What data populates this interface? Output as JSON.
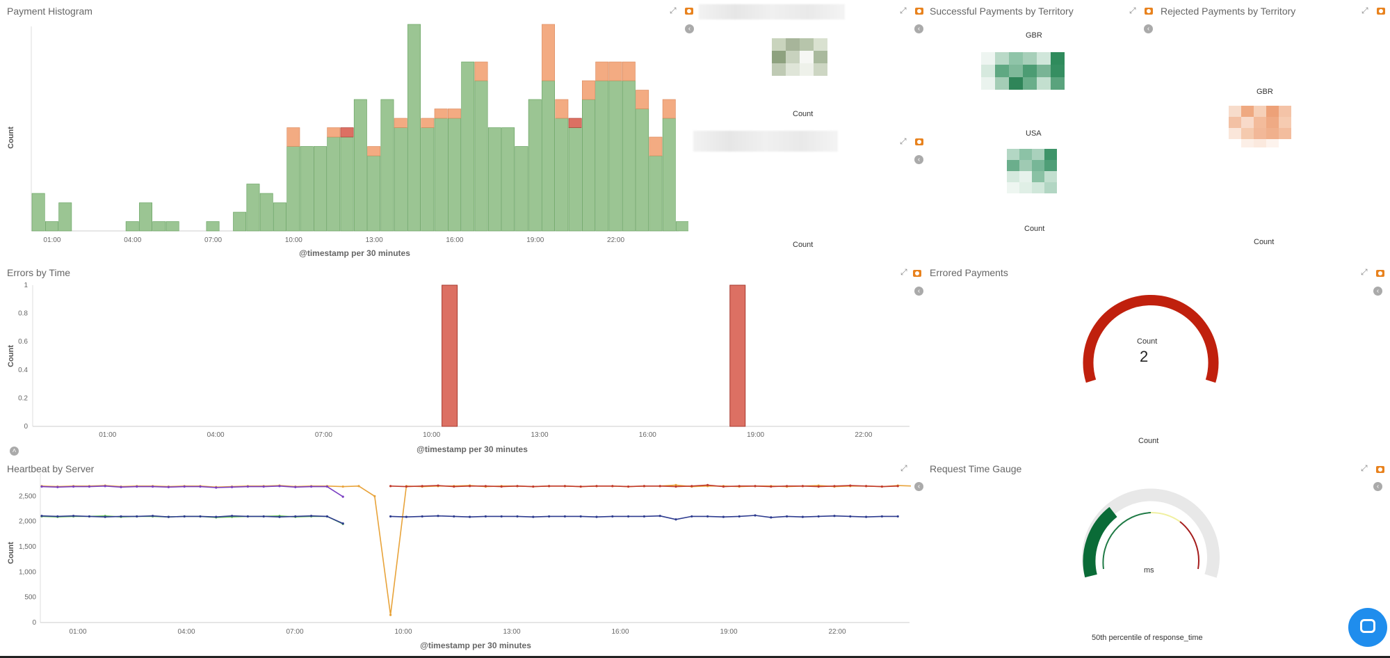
{
  "panels": {
    "payment_histogram": {
      "title": "Payment Histogram",
      "xlabel": "@timestamp per 30 minutes",
      "ylabel": "Count"
    },
    "blurred_panel": {
      "count_label_1": "Count",
      "count_label_2": "Count"
    },
    "successful": {
      "title": "Successful Payments by Territory",
      "regions": [
        "GBR",
        "USA"
      ],
      "count_label": "Count"
    },
    "rejected": {
      "title": "Rejected Payments by Territory",
      "regions": [
        "GBR"
      ],
      "count_label": "Count"
    },
    "errors": {
      "title": "Errors by Time",
      "xlabel": "@timestamp per 30 minutes",
      "ylabel": "Count"
    },
    "errored_payments": {
      "title": "Errored Payments",
      "label": "Count",
      "value": "2",
      "footer": "Count"
    },
    "heartbeat": {
      "title": "Heartbeat by Server",
      "xlabel": "@timestamp per 30 minutes",
      "ylabel": "Count"
    },
    "request_time": {
      "title": "Request Time Gauge",
      "unit": "ms",
      "footer": "50th percentile of response_time"
    }
  },
  "colors": {
    "success": "#9bc593",
    "rejected": "#f3ab82",
    "error": "#dc7063",
    "gauge_red": "#c0200d",
    "gauge_green": "#0a6b37"
  },
  "chart_data": [
    {
      "type": "bar",
      "name": "payment_histogram",
      "xlabel": "@timestamp per 30 minutes",
      "ylabel": "Count",
      "x_tick_labels": [
        "01:00",
        "04:00",
        "07:00",
        "10:00",
        "13:00",
        "16:00",
        "19:00",
        "22:00"
      ],
      "x_tick_positions_index": [
        1,
        7,
        13,
        19,
        25,
        31,
        37,
        43
      ],
      "series": [
        {
          "values": [
            4,
            1,
            3,
            0,
            0,
            0,
            0,
            1,
            3,
            1,
            1,
            0,
            0,
            1,
            0,
            2,
            5,
            4,
            3,
            9,
            9,
            9,
            10,
            10,
            14,
            8,
            14,
            11,
            22,
            11,
            12,
            12,
            18,
            16,
            11,
            11,
            9,
            14,
            16,
            12,
            11,
            14,
            16,
            16,
            16,
            13,
            8,
            12,
            1
          ]
        },
        {
          "values": [
            0,
            0,
            0,
            0,
            0,
            0,
            0,
            0,
            0,
            0,
            0,
            0,
            0,
            0,
            0,
            0,
            0,
            0,
            0,
            2,
            0,
            0,
            1,
            0,
            0,
            1,
            0,
            1,
            0,
            1,
            1,
            1,
            0,
            2,
            0,
            0,
            0,
            0,
            6,
            2,
            0,
            2,
            2,
            2,
            2,
            2,
            2,
            2,
            0
          ]
        },
        {
          "values": [
            0,
            0,
            0,
            0,
            0,
            0,
            0,
            0,
            0,
            0,
            0,
            0,
            0,
            0,
            0,
            0,
            0,
            0,
            0,
            0,
            0,
            0,
            0,
            1,
            0,
            0,
            0,
            0,
            0,
            0,
            0,
            0,
            0,
            0,
            0,
            0,
            0,
            0,
            0,
            0,
            1,
            0,
            0,
            0,
            0,
            0,
            0,
            0,
            0
          ]
        }
      ],
      "series_colors": [
        "#9bc593",
        "#f3ab82",
        "#dc7063"
      ]
    },
    {
      "type": "bar",
      "name": "errors_by_time",
      "xlabel": "@timestamp per 30 minutes",
      "ylabel": "Count",
      "x_tick_labels": [
        "01:00",
        "04:00",
        "07:00",
        "10:00",
        "13:00",
        "16:00",
        "19:00",
        "22:00"
      ],
      "y_tick_labels": [
        "0",
        "0.2",
        "0.4",
        "0.6",
        "0.8",
        "1"
      ],
      "ylim": [
        0,
        1
      ],
      "bars": [
        {
          "x": "10:30",
          "value": 1
        },
        {
          "x": "18:30",
          "value": 1
        }
      ]
    },
    {
      "type": "line",
      "name": "heartbeat_by_server",
      "xlabel": "@timestamp per 30 minutes",
      "ylabel": "Count",
      "x_tick_labels": [
        "01:00",
        "04:00",
        "07:00",
        "10:00",
        "13:00",
        "16:00",
        "19:00",
        "22:00"
      ],
      "y_tick_labels": [
        "0",
        "500",
        "1,000",
        "1,500",
        "2,000",
        "2,500"
      ],
      "ylim": [
        0,
        2900
      ],
      "series_colors": [
        "#e8a33a",
        "#6bc35c",
        "#7a3fc2",
        "#c0392b",
        "#2c3a8e"
      ],
      "series": [
        {
          "points_start": 0,
          "values": [
            2700,
            2690,
            2700,
            2700,
            2710,
            2690,
            2700,
            2700,
            2690,
            2700,
            2700,
            2680,
            2690,
            2700,
            2700,
            2710,
            2690,
            2700,
            2700,
            2690,
            2700,
            2500,
            150,
            2700,
            2690,
            2700,
            2700,
            2710,
            2690,
            2700,
            2700,
            2690,
            2700,
            2700,
            2690,
            2700,
            2700,
            2690,
            2700,
            2700,
            2720,
            2690,
            2700,
            2700,
            2690,
            2700,
            2700,
            2690,
            2700,
            2710,
            2690,
            2700,
            2700,
            2690,
            2710,
            2700
          ]
        },
        {
          "points_start": 0,
          "values": [
            2100,
            2090,
            2100,
            2100,
            2110,
            2090,
            2100,
            2100,
            2090,
            2100,
            2100,
            2080,
            2090,
            2100,
            2100,
            2110,
            2090,
            2100,
            2100,
            1950
          ]
        },
        {
          "points_start": 0,
          "values": [
            2690,
            2680,
            2690,
            2690,
            2700,
            2680,
            2690,
            2690,
            2680,
            2690,
            2690,
            2670,
            2680,
            2690,
            2690,
            2700,
            2680,
            2690,
            2690,
            2490
          ]
        },
        {
          "points_start": 22,
          "values": [
            2700,
            2690,
            2700,
            2710,
            2690,
            2700,
            2700,
            2690,
            2700,
            2690,
            2700,
            2700,
            2690,
            2700,
            2700,
            2690,
            2700,
            2700,
            2690,
            2700,
            2720,
            2690,
            2700,
            2700,
            2690,
            2700,
            2700,
            2690,
            2700,
            2710,
            2700,
            2690,
            2700
          ]
        },
        {
          "points_start": 0,
          "values": [
            2110,
            2100,
            2110,
            2100,
            2090,
            2100,
            2100,
            2110,
            2090,
            2100,
            2100,
            2090,
            2110,
            2100,
            2100,
            2090,
            2100,
            2110,
            2100,
            1960,
            null,
            null,
            2100,
            2090,
            2100,
            2110,
            2100,
            2090,
            2100,
            2100,
            2100,
            2090,
            2100,
            2100,
            2100,
            2090,
            2100,
            2100,
            2100,
            2110,
            2040,
            2100,
            2100,
            2090,
            2100,
            2120,
            2080,
            2100,
            2090,
            2100,
            2110,
            2100,
            2090,
            2100,
            2100
          ]
        }
      ]
    }
  ]
}
